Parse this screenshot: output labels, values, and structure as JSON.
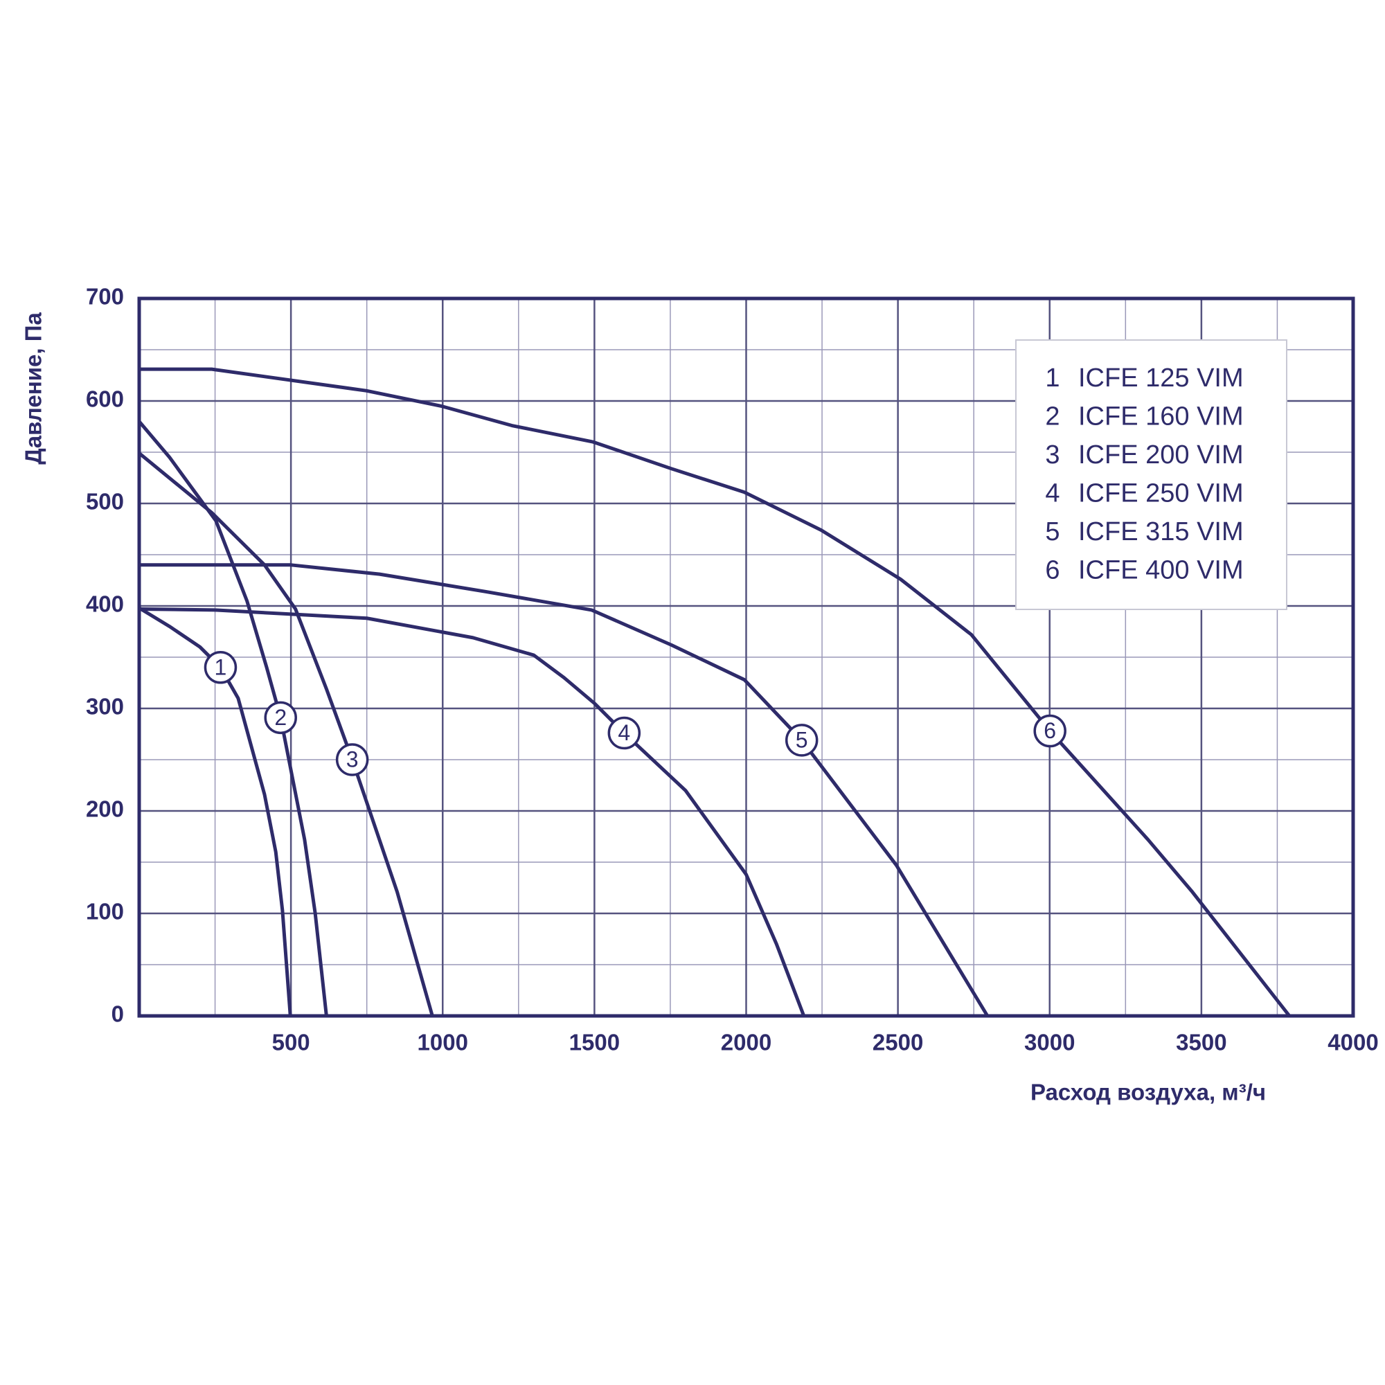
{
  "chart_data": {
    "type": "line",
    "ylabel": "Давление, Па",
    "xlabel": "Расход воздуха, м³/ч",
    "xlim": [
      0,
      4000
    ],
    "ylim": [
      0,
      700
    ],
    "xticks": [
      500,
      1000,
      1500,
      2000,
      2500,
      3000,
      3500,
      4000
    ],
    "yticks": [
      0,
      100,
      200,
      300,
      400,
      500,
      600,
      700
    ],
    "x_minor_ticks": [
      250,
      750,
      1250,
      1750,
      2250,
      2750,
      3250,
      3750
    ],
    "y_minor_ticks": [
      50,
      150,
      250,
      350,
      450,
      550,
      650
    ],
    "grid": true,
    "legend": "upper right",
    "color": "#2e2b6a",
    "series": [
      {
        "label": "1",
        "name": "ICFE 125 VIM",
        "x": [
          0,
          100,
          200,
          268,
          326,
          413,
          450,
          472,
          498
        ],
        "values": [
          398,
          380,
          360,
          340,
          310,
          216,
          160,
          103,
          0
        ]
      },
      {
        "label": "2",
        "name": "ICFE 160 VIM",
        "x": [
          0,
          100,
          253,
          355,
          420,
          466,
          545,
          580,
          617
        ],
        "values": [
          580,
          545,
          483,
          405,
          340,
          291,
          172,
          100,
          0
        ]
      },
      {
        "label": "3",
        "name": "ICFE 200 VIM",
        "x": [
          0,
          239,
          413,
          515,
          617,
          702,
          850,
          966
        ],
        "values": [
          549,
          491,
          440,
          397,
          319,
          250,
          121,
          0
        ]
      },
      {
        "label": "4",
        "name": "ICFE 250 VIM",
        "x": [
          0,
          250,
          750,
          1100,
          1300,
          1400,
          1500,
          1598,
          1800,
          2000,
          2100,
          2190
        ],
        "values": [
          397,
          396,
          388,
          369,
          352,
          330,
          305,
          276,
          220,
          138,
          70,
          0
        ]
      },
      {
        "label": "5",
        "name": "ICFE 315 VIM",
        "x": [
          0,
          500,
          792,
          1141,
          1491,
          1753,
          1994,
          2183,
          2495,
          2795
        ],
        "values": [
          440,
          440,
          431,
          414,
          396,
          362,
          328,
          269,
          147,
          0
        ]
      },
      {
        "label": "6",
        "name": "ICFE 400 VIM",
        "x": [
          0,
          239,
          748,
          995,
          1228,
          1496,
          1753,
          1994,
          2247,
          2509,
          2742,
          3001,
          3324,
          3470,
          3790
        ],
        "values": [
          631,
          631,
          610,
          595,
          576,
          560,
          534,
          511,
          474,
          426,
          372,
          278,
          172,
          121,
          0
        ]
      }
    ]
  }
}
